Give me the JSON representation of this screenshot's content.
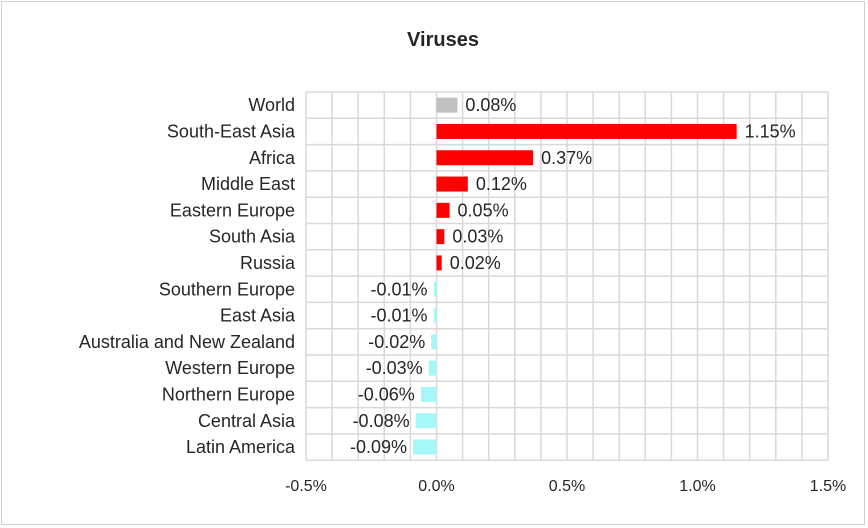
{
  "chart_data": {
    "type": "bar",
    "orientation": "horizontal",
    "title": "Viruses",
    "categories": [
      "World",
      "South-East Asia",
      "Africa",
      "Middle East",
      "Eastern Europe",
      "South Asia",
      "Russia",
      "Southern Europe",
      "East Asia",
      "Australia and New Zealand",
      "Western Europe",
      "Northern Europe",
      "Central Asia",
      "Latin America"
    ],
    "values": [
      0.08,
      1.15,
      0.37,
      0.12,
      0.05,
      0.03,
      0.02,
      -0.01,
      -0.01,
      -0.02,
      -0.03,
      -0.06,
      -0.08,
      -0.09
    ],
    "data_labels": [
      "0.08%",
      "1.15%",
      "0.37%",
      "0.12%",
      "0.05%",
      "0.03%",
      "0.02%",
      "-0.01%",
      "-0.01%",
      "-0.02%",
      "-0.03%",
      "-0.06%",
      "-0.08%",
      "-0.09%"
    ],
    "xlim": [
      -0.5,
      1.5
    ],
    "x_ticks": [
      "-0.5%",
      "0.0%",
      "0.5%",
      "1.0%",
      "1.5%"
    ],
    "x_tick_values": [
      -0.5,
      0.0,
      0.5,
      1.0,
      1.5
    ],
    "grid": true,
    "legend": "none",
    "colors": {
      "world": "#c0c0c0",
      "positive": "#ff0000",
      "negative": "#a6f7f7",
      "gridline": "#d9d9d9",
      "text": "#262626"
    }
  }
}
